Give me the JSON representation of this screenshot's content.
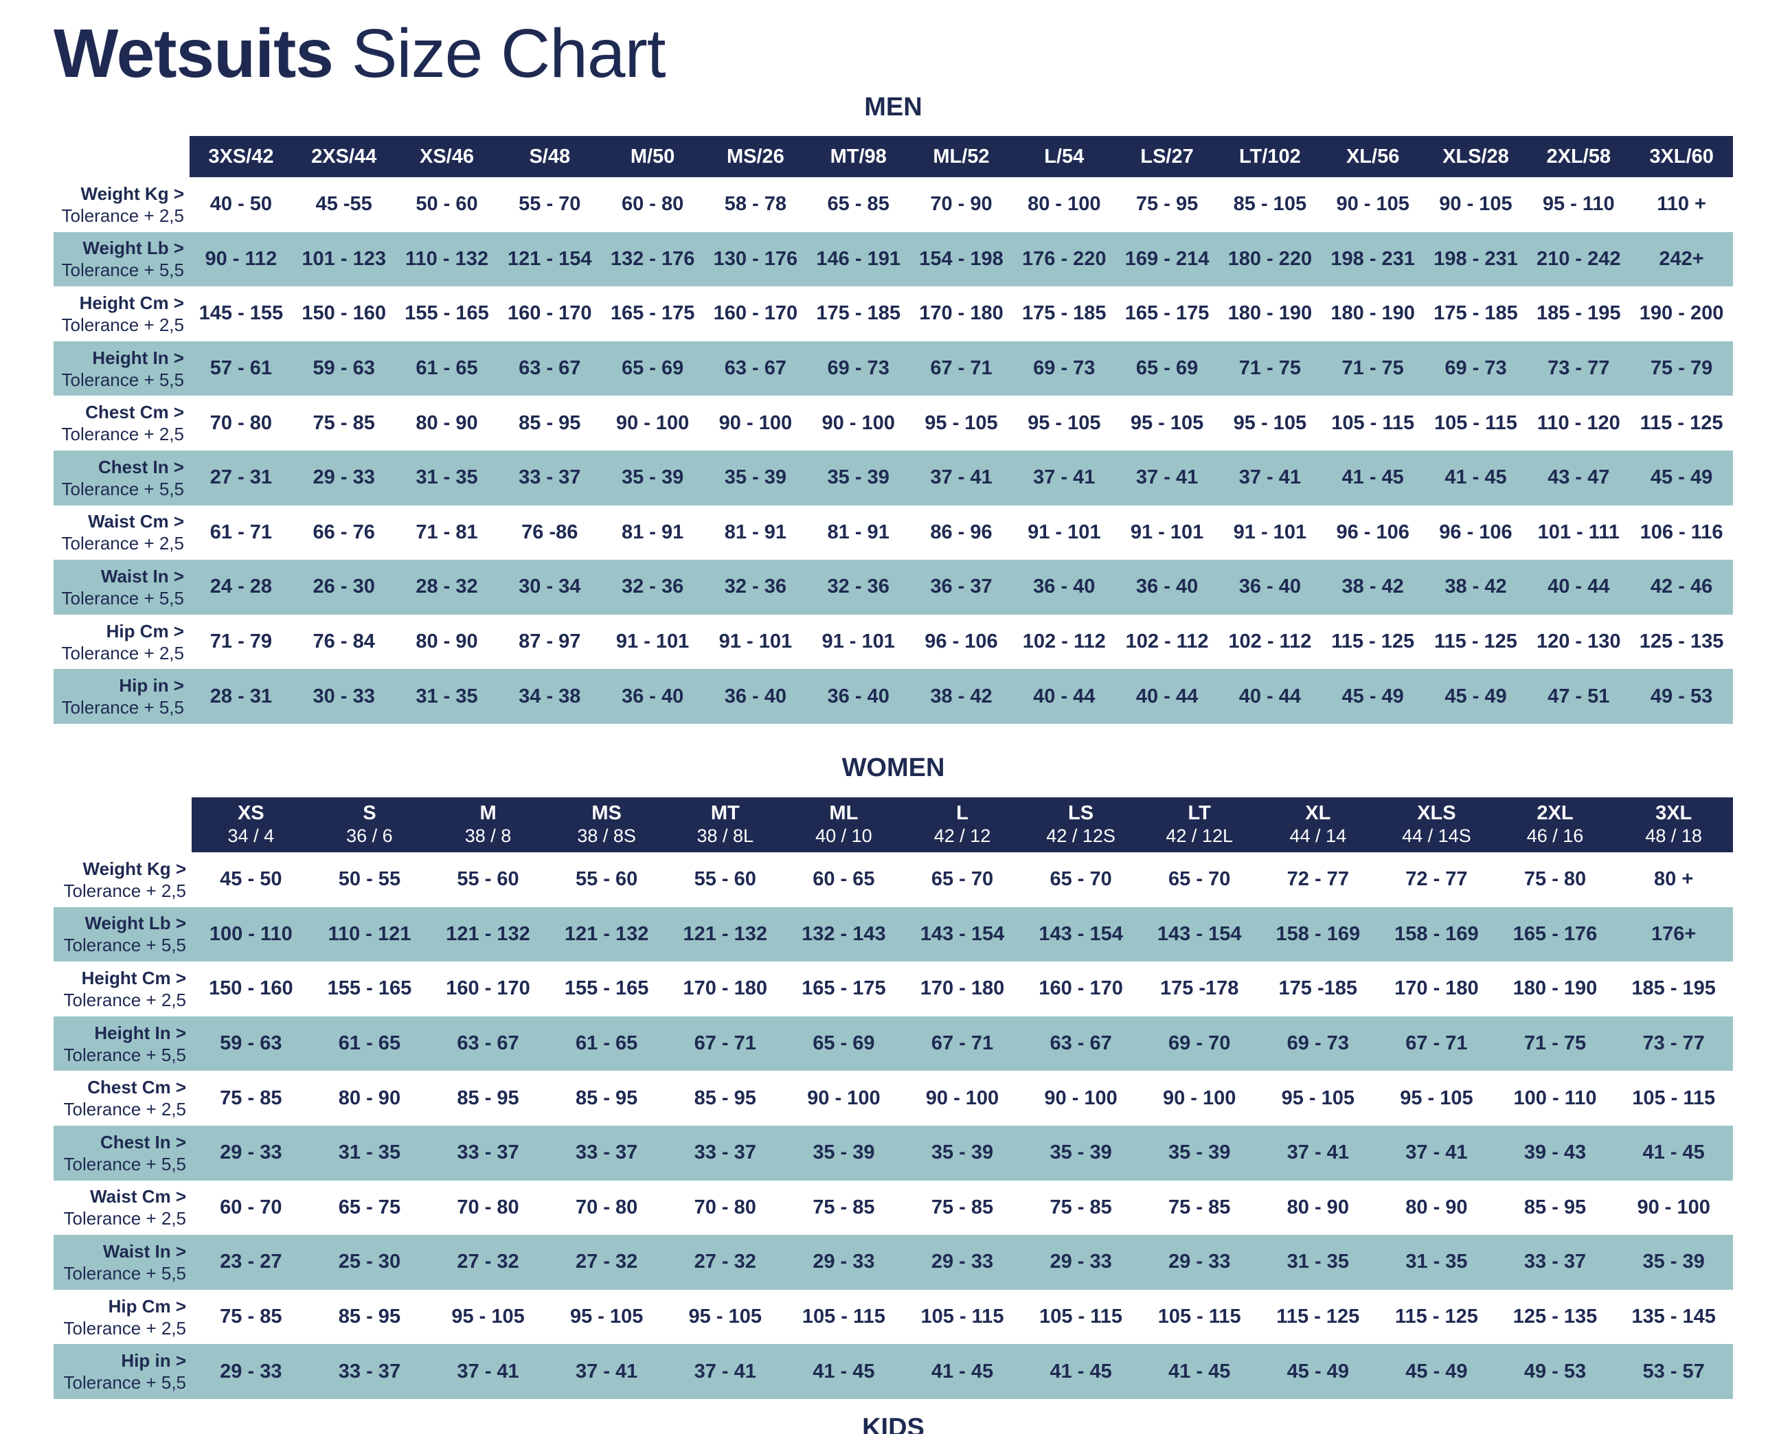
{
  "title": {
    "bold": "Wetsuits",
    "light": "Size Chart"
  },
  "men": {
    "heading": "MEN",
    "sizes": [
      "3XS/42",
      "2XS/44",
      "XS/46",
      "S/48",
      "M/50",
      "MS/26",
      "MT/98",
      "ML/52",
      "L/54",
      "LS/27",
      "LT/102",
      "XL/56",
      "XLS/28",
      "2XL/58",
      "3XL/60"
    ],
    "rows": [
      {
        "label": "Weight Kg >",
        "tolerance": "Tolerance + 2,5",
        "values": [
          "40 - 50",
          "45 -55",
          "50 - 60",
          "55 - 70",
          "60 - 80",
          "58 - 78",
          "65 - 85",
          "70 - 90",
          "80 - 100",
          "75 - 95",
          "85 - 105",
          "90 - 105",
          "90 - 105",
          "95 - 110",
          "110 +"
        ]
      },
      {
        "label": "Weight Lb >",
        "tolerance": "Tolerance + 5,5",
        "values": [
          "90 - 112",
          "101 - 123",
          "110 - 132",
          "121 - 154",
          "132 - 176",
          "130 - 176",
          "146 - 191",
          "154 - 198",
          "176 - 220",
          "169 - 214",
          "180 - 220",
          "198 - 231",
          "198 - 231",
          "210 - 242",
          "242+"
        ]
      },
      {
        "label": "Height Cm >",
        "tolerance": "Tolerance + 2,5",
        "values": [
          "145 - 155",
          "150 - 160",
          "155 - 165",
          "160 - 170",
          "165 - 175",
          "160 - 170",
          "175 - 185",
          "170 - 180",
          "175 - 185",
          "165 - 175",
          "180 - 190",
          "180 - 190",
          "175 - 185",
          "185 - 195",
          "190 - 200"
        ]
      },
      {
        "label": "Height In >",
        "tolerance": "Tolerance + 5,5",
        "values": [
          "57 - 61",
          "59 - 63",
          "61 - 65",
          "63 - 67",
          "65 - 69",
          "63 - 67",
          "69 - 73",
          "67 - 71",
          "69 - 73",
          "65 - 69",
          "71 - 75",
          "71 - 75",
          "69 - 73",
          "73 - 77",
          "75 - 79"
        ]
      },
      {
        "label": "Chest Cm >",
        "tolerance": "Tolerance + 2,5",
        "values": [
          "70 - 80",
          "75 - 85",
          "80 - 90",
          "85 - 95",
          "90 - 100",
          "90 - 100",
          "90 - 100",
          "95 - 105",
          "95 - 105",
          "95 - 105",
          "95 - 105",
          "105 - 115",
          "105 - 115",
          "110 - 120",
          "115 - 125"
        ]
      },
      {
        "label": "Chest In >",
        "tolerance": "Tolerance + 5,5",
        "values": [
          "27 - 31",
          "29 - 33",
          "31 - 35",
          "33 - 37",
          "35 - 39",
          "35 - 39",
          "35 - 39",
          "37 - 41",
          "37 - 41",
          "37 - 41",
          "37 - 41",
          "41 - 45",
          "41 - 45",
          "43 - 47",
          "45 - 49"
        ]
      },
      {
        "label": "Waist Cm >",
        "tolerance": "Tolerance + 2,5",
        "values": [
          "61 - 71",
          "66 - 76",
          "71 - 81",
          "76 -86",
          "81 - 91",
          "81 - 91",
          "81 - 91",
          "86 - 96",
          "91 - 101",
          "91 - 101",
          "91 - 101",
          "96 - 106",
          "96 - 106",
          "101 - 111",
          "106 - 116"
        ]
      },
      {
        "label": "Waist In >",
        "tolerance": "Tolerance + 5,5",
        "values": [
          "24 - 28",
          "26 - 30",
          "28 - 32",
          "30 - 34",
          "32 - 36",
          "32 - 36",
          "32 - 36",
          "36 - 37",
          "36 - 40",
          "36 - 40",
          "36 - 40",
          "38 - 42",
          "38 - 42",
          "40 - 44",
          "42 - 46"
        ]
      },
      {
        "label": "Hip Cm >",
        "tolerance": "Tolerance + 2,5",
        "values": [
          "71 - 79",
          "76 - 84",
          "80 - 90",
          "87 - 97",
          "91 - 101",
          "91 - 101",
          "91 - 101",
          "96 - 106",
          "102 - 112",
          "102 - 112",
          "102 - 112",
          "115 - 125",
          "115 - 125",
          "120 - 130",
          "125 - 135"
        ]
      },
      {
        "label": "Hip in >",
        "tolerance": "Tolerance + 5,5",
        "values": [
          "28 - 31",
          "30 - 33",
          "31 - 35",
          "34 - 38",
          "36 - 40",
          "36 - 40",
          "36 - 40",
          "38 - 42",
          "40 - 44",
          "40 - 44",
          "40 - 44",
          "45 - 49",
          "45 - 49",
          "47 - 51",
          "49 - 53"
        ]
      }
    ]
  },
  "women": {
    "heading": "WOMEN",
    "sizes": [
      {
        "size": "XS",
        "eu_us": "34 / 4"
      },
      {
        "size": "S",
        "eu_us": "36 / 6"
      },
      {
        "size": "M",
        "eu_us": "38 / 8"
      },
      {
        "size": "MS",
        "eu_us": "38 / 8S"
      },
      {
        "size": "MT",
        "eu_us": "38 / 8L"
      },
      {
        "size": "ML",
        "eu_us": "40 / 10"
      },
      {
        "size": "L",
        "eu_us": "42 / 12"
      },
      {
        "size": "LS",
        "eu_us": "42 / 12S"
      },
      {
        "size": "LT",
        "eu_us": "42 / 12L"
      },
      {
        "size": "XL",
        "eu_us": "44 / 14"
      },
      {
        "size": "XLS",
        "eu_us": "44 / 14S"
      },
      {
        "size": "2XL",
        "eu_us": "46 / 16"
      },
      {
        "size": "3XL",
        "eu_us": "48 / 18"
      }
    ],
    "rows": [
      {
        "label": "Weight Kg >",
        "tolerance": "Tolerance + 2,5",
        "values": [
          "45 - 50",
          "50 - 55",
          "55 - 60",
          "55 - 60",
          "55 - 60",
          "60 - 65",
          "65 - 70",
          "65 - 70",
          "65 - 70",
          "72 - 77",
          "72 - 77",
          "75 - 80",
          "80 +"
        ]
      },
      {
        "label": "Weight Lb >",
        "tolerance": "Tolerance + 5,5",
        "values": [
          "100 - 110",
          "110 - 121",
          "121 - 132",
          "121 - 132",
          "121 - 132",
          "132 - 143",
          "143 - 154",
          "143 - 154",
          "143 - 154",
          "158 - 169",
          "158 - 169",
          "165 - 176",
          "176+"
        ]
      },
      {
        "label": "Height Cm >",
        "tolerance": "Tolerance + 2,5",
        "values": [
          "150 - 160",
          "155 - 165",
          "160 - 170",
          "155 - 165",
          "170 - 180",
          "165 - 175",
          "170 - 180",
          "160 - 170",
          "175 -178",
          "175 -185",
          "170 - 180",
          "180 - 190",
          "185 - 195"
        ]
      },
      {
        "label": "Height In >",
        "tolerance": "Tolerance + 5,5",
        "values": [
          "59 - 63",
          "61 - 65",
          "63 - 67",
          "61 - 65",
          "67 - 71",
          "65 - 69",
          "67 - 71",
          "63 - 67",
          "69 - 70",
          "69 - 73",
          "67 - 71",
          "71 - 75",
          "73 - 77"
        ]
      },
      {
        "label": "Chest Cm >",
        "tolerance": "Tolerance + 2,5",
        "values": [
          "75 - 85",
          "80 - 90",
          "85 - 95",
          "85 - 95",
          "85 - 95",
          "90 - 100",
          "90 - 100",
          "90 - 100",
          "90 - 100",
          "95 - 105",
          "95 - 105",
          "100 - 110",
          "105 - 115"
        ]
      },
      {
        "label": "Chest In >",
        "tolerance": "Tolerance + 5,5",
        "values": [
          "29 - 33",
          "31 - 35",
          "33 - 37",
          "33 - 37",
          "33 - 37",
          "35 - 39",
          "35 - 39",
          "35 - 39",
          "35 - 39",
          "37 - 41",
          "37 - 41",
          "39 - 43",
          "41 - 45"
        ]
      },
      {
        "label": "Waist Cm >",
        "tolerance": "Tolerance + 2,5",
        "values": [
          "60 - 70",
          "65 - 75",
          "70 - 80",
          "70 - 80",
          "70 - 80",
          "75 - 85",
          "75 - 85",
          "75 - 85",
          "75 - 85",
          "80 - 90",
          "80 - 90",
          "85 - 95",
          "90 - 100"
        ]
      },
      {
        "label": "Waist In >",
        "tolerance": "Tolerance + 5,5",
        "values": [
          "23 - 27",
          "25 - 30",
          "27 - 32",
          "27 - 32",
          "27 - 32",
          "29 - 33",
          "29 - 33",
          "29 - 33",
          "29 - 33",
          "31 - 35",
          "31 - 35",
          "33 - 37",
          "35 - 39"
        ]
      },
      {
        "label": "Hip Cm >",
        "tolerance": "Tolerance + 2,5",
        "values": [
          "75 - 85",
          "85 - 95",
          "95 - 105",
          "95 - 105",
          "95 - 105",
          "105 - 115",
          "105 - 115",
          "105 - 115",
          "105 - 115",
          "115 - 125",
          "115 - 125",
          "125 - 135",
          "135 - 145"
        ]
      },
      {
        "label": "Hip in >",
        "tolerance": "Tolerance + 5,5",
        "values": [
          "29 - 33",
          "33 - 37",
          "37 - 41",
          "37 - 41",
          "37 - 41",
          "41 - 45",
          "41 - 45",
          "41 - 45",
          "41 - 45",
          "45 - 49",
          "45 - 49",
          "49 - 53",
          "53 - 57"
        ]
      }
    ]
  },
  "kids": {
    "heading": "KIDS"
  },
  "colors": {
    "navy": "#1f2a52",
    "teal": "#9cc4c8",
    "white": "#ffffff"
  }
}
